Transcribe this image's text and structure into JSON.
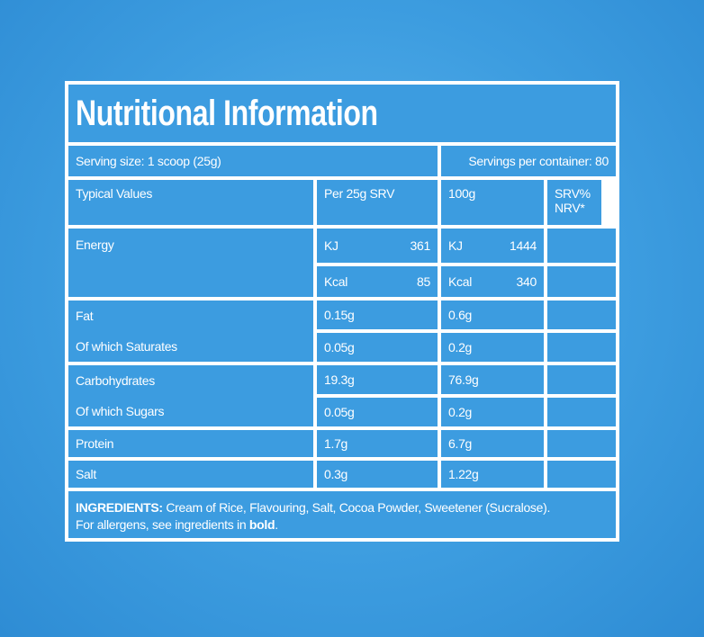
{
  "title": "Nutritional Information",
  "serving_size": "Serving size: 1 scoop (25g)",
  "servings_per_container": "Servings per container: 80",
  "columns": [
    "Typical Values",
    "Per 25g SRV",
    "100g",
    "SRV% NRV*"
  ],
  "energy": {
    "label": "Energy",
    "rows": [
      {
        "unit": "KJ",
        "per_serving": 361,
        "per_100g": 1444
      },
      {
        "unit": "Kcal",
        "per_serving": 85,
        "per_100g": 340
      }
    ]
  },
  "nutrients": [
    {
      "name": "Fat",
      "per_serving": "0.15g",
      "per_100g": "0.6g"
    },
    {
      "name": "Of which Saturates",
      "per_serving": "0.05g",
      "per_100g": "0.2g"
    },
    {
      "name": "Carbohydrates",
      "per_serving": "19.3g",
      "per_100g": "76.9g"
    },
    {
      "name": "Of which Sugars",
      "per_serving": "0.05g",
      "per_100g": "0.2g"
    },
    {
      "name": "Protein",
      "per_serving": "1.7g",
      "per_100g": "6.7g"
    },
    {
      "name": "Salt",
      "per_serving": "0.3g",
      "per_100g": "1.22g"
    }
  ],
  "ingredients": {
    "heading": "INGREDIENTS:",
    "text": "Cream of Rice, Flavouring, Salt, Cocoa Powder, Sweetener (Sucralose).",
    "allergen_note": "For allergens, see ingredients in",
    "allergen_bold": "bold",
    "allergen_end": "."
  }
}
